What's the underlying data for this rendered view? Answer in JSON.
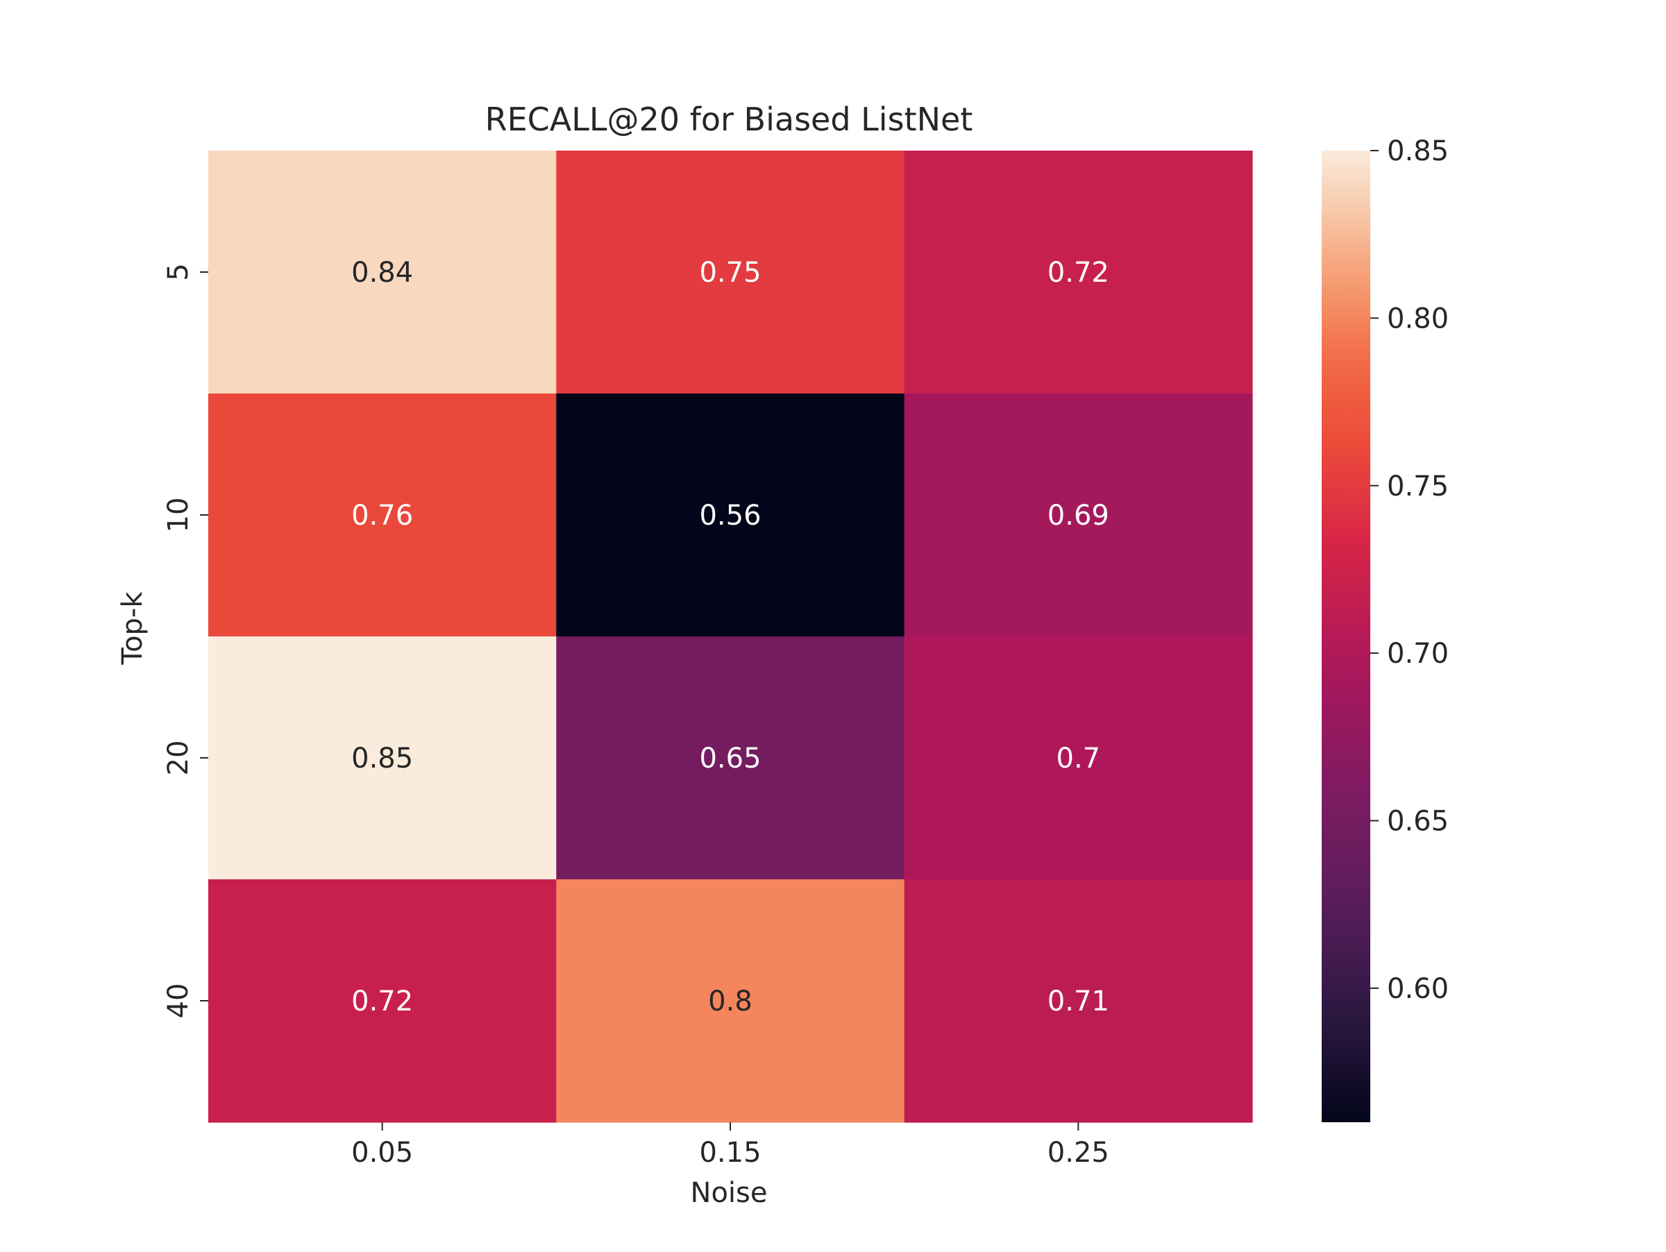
{
  "chart_data": {
    "type": "heatmap",
    "title": "RECALL@20 for Biased ListNet",
    "xlabel": "Noise",
    "ylabel": "Top-k",
    "x_categories": [
      "0.05",
      "0.15",
      "0.25"
    ],
    "y_categories": [
      "5",
      "10",
      "20",
      "40"
    ],
    "values": [
      [
        0.84,
        0.75,
        0.72
      ],
      [
        0.76,
        0.56,
        0.69
      ],
      [
        0.85,
        0.65,
        0.7
      ],
      [
        0.72,
        0.8,
        0.71
      ]
    ],
    "annotations": [
      [
        "0.84",
        "0.75",
        "0.72"
      ],
      [
        "0.76",
        "0.56",
        "0.69"
      ],
      [
        "0.85",
        "0.65",
        "0.7"
      ],
      [
        "0.72",
        "0.8",
        "0.71"
      ]
    ],
    "colorbar": {
      "min": 0.56,
      "max": 0.85,
      "ticks": [
        "0.60",
        "0.65",
        "0.70",
        "0.75",
        "0.80",
        "0.85"
      ],
      "colormap": "rocket"
    }
  }
}
